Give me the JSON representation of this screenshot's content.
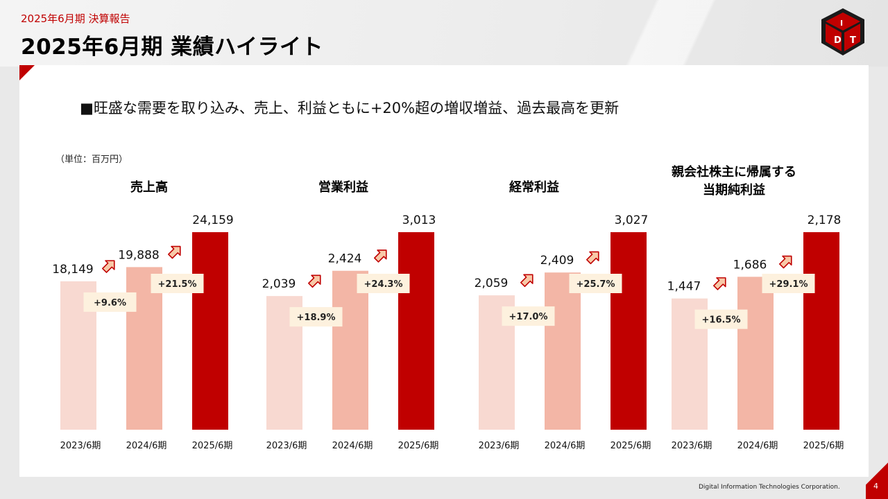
{
  "header": {
    "subtitle": "2025年6月期 決算報告",
    "title": "2025年6月期 業績ハイライト"
  },
  "headline": "■旺盛な需要を取り込み、売上、利益ともに+20%超の増収増益、過去最高を更新",
  "unit_label": "（単位：百万円）",
  "footer": {
    "company": "Digital Information Technologies Corporation.",
    "page": "4"
  },
  "colors": {
    "bar_2023": "#f8d9d1",
    "bar_2024": "#f3b6a6",
    "bar_2025": "#c00000",
    "growth_box": "#fdf1de",
    "accent": "#c00000"
  },
  "icons": [
    "growth-arrow-icon",
    "logo-cube-icon"
  ],
  "chart_data": [
    {
      "type": "bar",
      "title": [
        "売上高"
      ],
      "categories": [
        "2023/6期",
        "2024/6期",
        "2025/6期"
      ],
      "values": [
        18149,
        19888,
        24159
      ],
      "value_labels": [
        "18,149",
        "19,888",
        "24,159"
      ],
      "growth": [
        "+9.6%",
        "+21.5%"
      ],
      "ylim": [
        0,
        24159
      ]
    },
    {
      "type": "bar",
      "title": [
        "営業利益"
      ],
      "categories": [
        "2023/6期",
        "2024/6期",
        "2025/6期"
      ],
      "values": [
        2039,
        2424,
        3013
      ],
      "value_labels": [
        "2,039",
        "2,424",
        "3,013"
      ],
      "growth": [
        "+18.9%",
        "+24.3%"
      ],
      "ylim": [
        0,
        3013
      ]
    },
    {
      "type": "bar",
      "title": [
        "経常利益"
      ],
      "categories": [
        "2023/6期",
        "2024/6期",
        "2025/6期"
      ],
      "values": [
        2059,
        2409,
        3027
      ],
      "value_labels": [
        "2,059",
        "2,409",
        "3,027"
      ],
      "growth": [
        "+17.0%",
        "+25.7%"
      ],
      "ylim": [
        0,
        3027
      ]
    },
    {
      "type": "bar",
      "title": [
        "親会社株主に帰属する",
        "当期純利益"
      ],
      "categories": [
        "2023/6期",
        "2024/6期",
        "2025/6期"
      ],
      "values": [
        1447,
        1686,
        2178
      ],
      "value_labels": [
        "1,447",
        "1,686",
        "2,178"
      ],
      "growth": [
        "+16.5%",
        "+29.1%"
      ],
      "ylim": [
        0,
        2178
      ]
    }
  ]
}
